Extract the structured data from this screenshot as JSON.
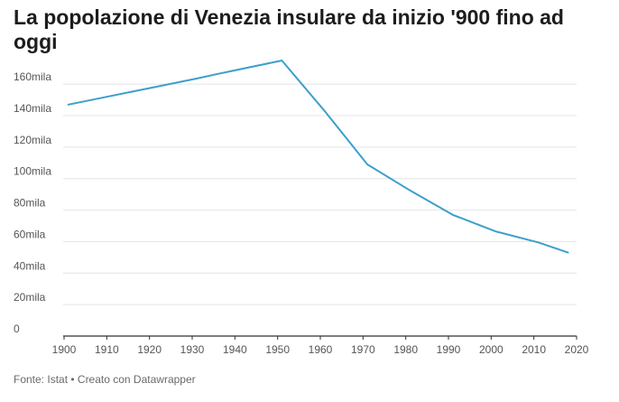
{
  "chart_data": {
    "type": "line",
    "title": "La popolazione di Venezia insulare da inizio '900 fino ad oggi",
    "xlabel": "",
    "ylabel": "",
    "x": [
      1901,
      1911,
      1921,
      1931,
      1936,
      1951,
      1961,
      1971,
      1981,
      1991,
      2001,
      2011,
      2018
    ],
    "series": [
      {
        "values": [
          147000,
          152500,
          158000,
          163500,
          166500,
          175000,
          143000,
          109000,
          92500,
          77000,
          66500,
          59500,
          53000
        ]
      }
    ],
    "xlim": [
      1900,
      2020
    ],
    "ylim": [
      0,
      175000
    ],
    "x_ticks": [
      1900,
      1910,
      1920,
      1930,
      1940,
      1950,
      1960,
      1970,
      1980,
      1990,
      2000,
      2010,
      2020
    ],
    "x_tick_labels": [
      "1900",
      "1910",
      "1920",
      "1930",
      "1940",
      "1950",
      "1960",
      "1970",
      "1980",
      "1990",
      "2000",
      "2010",
      "2020"
    ],
    "y_ticks": [
      0,
      20000,
      40000,
      60000,
      80000,
      100000,
      120000,
      140000,
      160000
    ],
    "y_tick_labels": [
      "0",
      "20mila",
      "40mila",
      "60mila",
      "80mila",
      "100mila",
      "120mila",
      "140mila",
      "160mila"
    ],
    "grid": true,
    "legend": "none",
    "colors": {
      "line": "#3d9fcb",
      "grid": "#e4e4e4",
      "axis": "#333333",
      "tick_label": "#555555"
    }
  },
  "footer": {
    "source": "Fonte: Istat • Creato con Datawrapper"
  }
}
